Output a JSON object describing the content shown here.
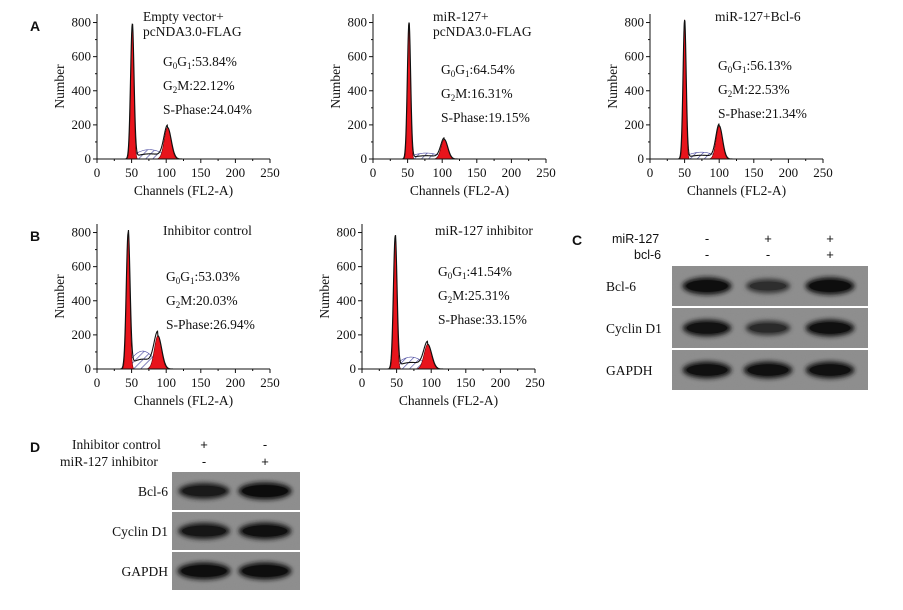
{
  "panels": {
    "A": "A",
    "B": "B",
    "C": "C",
    "D": "D"
  },
  "chart_data": [
    {
      "type": "area",
      "panel": "A",
      "title": "Empty vector+ pcNDA3.0-FLAG",
      "title_lines": [
        "Empty vector+",
        "pcNDA3.0-FLAG"
      ],
      "xlabel": "Channels (FL2-A)",
      "ylabel": "Number",
      "xlim": [
        0,
        250
      ],
      "ylim": [
        0,
        850
      ],
      "xticks": [
        0,
        50,
        100,
        150,
        200,
        250
      ],
      "yticks": [
        0,
        200,
        400,
        600,
        800
      ],
      "g1": {
        "pos": 51,
        "height": 790,
        "width": 2.2
      },
      "g2m": {
        "pos": 102,
        "height": 185,
        "width": 4.8
      },
      "s": {
        "level": 55
      },
      "stats": {
        "g0g1_prefix": "G",
        "g0g1_sub0": "0",
        "g0g1_mid": "G",
        "g0g1_sub1": "1",
        "g0g1_value": ":53.84%",
        "g2m_prefix": "G",
        "g2m_sub": "2",
        "g2m_value": "M:22.12%",
        "s_phase": "S-Phase:24.04%"
      }
    },
    {
      "type": "area",
      "panel": "A",
      "title": "miR-127+ pcNDA3.0-FLAG",
      "title_lines": [
        "miR-127+",
        "pcNDA3.0-FLAG"
      ],
      "xlabel": "Channels (FL2-A)",
      "ylabel": "Number",
      "xlim": [
        0,
        250
      ],
      "ylim": [
        0,
        850
      ],
      "xticks": [
        0,
        50,
        100,
        150,
        200,
        250
      ],
      "yticks": [
        0,
        200,
        400,
        600,
        800
      ],
      "g1": {
        "pos": 52,
        "height": 800,
        "width": 2.1
      },
      "g2m": {
        "pos": 103,
        "height": 115,
        "width": 4.6
      },
      "s": {
        "level": 35
      },
      "stats": {
        "g0g1_prefix": "G",
        "g0g1_sub0": "0",
        "g0g1_mid": "G",
        "g0g1_sub1": "1",
        "g0g1_value": ":64.54%",
        "g2m_prefix": "G",
        "g2m_sub": "2",
        "g2m_value": "M:16.31%",
        "s_phase": "S-Phase:19.15%"
      }
    },
    {
      "type": "area",
      "panel": "A",
      "title": "miR-127+Bcl-6",
      "title_lines": [
        "miR-127+Bcl-6"
      ],
      "xlabel": "Channels (FL2-A)",
      "ylabel": "Number",
      "xlim": [
        0,
        250
      ],
      "ylim": [
        0,
        850
      ],
      "xticks": [
        0,
        50,
        100,
        150,
        200,
        250
      ],
      "yticks": [
        0,
        200,
        400,
        600,
        800
      ],
      "g1": {
        "pos": 50,
        "height": 815,
        "width": 2.0
      },
      "g2m": {
        "pos": 100,
        "height": 195,
        "width": 4.4
      },
      "s": {
        "level": 40
      },
      "stats": {
        "g0g1_prefix": "G",
        "g0g1_sub0": "0",
        "g0g1_mid": "G",
        "g0g1_sub1": "1",
        "g0g1_value": ":56.13%",
        "g2m_prefix": "G",
        "g2m_sub": "2",
        "g2m_value": "M:22.53%",
        "s_phase": "S-Phase:21.34%"
      }
    },
    {
      "type": "area",
      "panel": "B",
      "title": "Inhibitor control",
      "title_lines": [
        "Inhibitor control"
      ],
      "xlabel": "Channels (FL2-A)",
      "ylabel": "Number",
      "xlim": [
        0,
        250
      ],
      "ylim": [
        0,
        850
      ],
      "xticks": [
        0,
        50,
        100,
        150,
        200,
        250
      ],
      "yticks": [
        0,
        200,
        400,
        600,
        800
      ],
      "g1": {
        "pos": 45,
        "height": 800,
        "width": 2.4
      },
      "g2m": {
        "pos": 88,
        "height": 195,
        "width": 5.0
      },
      "s": {
        "level": 105
      },
      "stats": {
        "g0g1_prefix": "G",
        "g0g1_sub0": "0",
        "g0g1_mid": "G",
        "g0g1_sub1": "1",
        "g0g1_value": ":53.03%",
        "g2m_prefix": "G",
        "g2m_sub": "2",
        "g2m_value": "M:20.03%",
        "s_phase": "S-Phase:26.94%"
      }
    },
    {
      "type": "area",
      "panel": "B",
      "title": "miR-127 inhibitor",
      "title_lines": [
        "miR-127 inhibitor"
      ],
      "xlabel": "Channels (FL2-A)",
      "ylabel": "Number",
      "xlim": [
        0,
        250
      ],
      "ylim": [
        0,
        850
      ],
      "xticks": [
        0,
        50,
        100,
        150,
        200,
        250
      ],
      "yticks": [
        0,
        200,
        400,
        600,
        800
      ],
      "g1": {
        "pos": 48,
        "height": 780,
        "width": 2.3
      },
      "g2m": {
        "pos": 95,
        "height": 145,
        "width": 5.2
      },
      "s": {
        "level": 70
      },
      "stats": {
        "g0g1_prefix": "G",
        "g0g1_sub0": "0",
        "g0g1_mid": "G",
        "g0g1_sub1": "1",
        "g0g1_value": ":41.54%",
        "g2m_prefix": "G",
        "g2m_sub": "2",
        "g2m_value": "M:25.31%",
        "s_phase": "S-Phase:33.15%"
      }
    }
  ],
  "blot_c": {
    "header_labels": [
      "miR-127",
      "bcl-6"
    ],
    "signs": [
      [
        "-",
        "+",
        "+"
      ],
      [
        "-",
        "-",
        "+"
      ]
    ],
    "rows": [
      {
        "label": "Bcl-6",
        "intensity": [
          0.95,
          0.55,
          0.95
        ]
      },
      {
        "label": "Cyclin D1",
        "intensity": [
          0.9,
          0.6,
          0.92
        ]
      },
      {
        "label": "GAPDH",
        "intensity": [
          0.92,
          0.92,
          0.92
        ]
      }
    ]
  },
  "blot_d": {
    "header_labels": [
      "Inhibitor control",
      "miR-127 inhibitor"
    ],
    "signs": [
      [
        "+",
        "-"
      ],
      [
        "-",
        "+"
      ]
    ],
    "rows": [
      {
        "label": "Bcl-6",
        "intensity": [
          0.8,
          0.98
        ]
      },
      {
        "label": "Cyclin D1",
        "intensity": [
          0.85,
          0.92
        ]
      },
      {
        "label": "GAPDH",
        "intensity": [
          0.95,
          0.95
        ]
      }
    ]
  },
  "colors": {
    "g1_fill": "#e8141c",
    "g2m_fill": "#e8141c",
    "s_hatch": "#4a4aa0",
    "blot_bg": "#8c8c8c",
    "band": "#161616"
  }
}
